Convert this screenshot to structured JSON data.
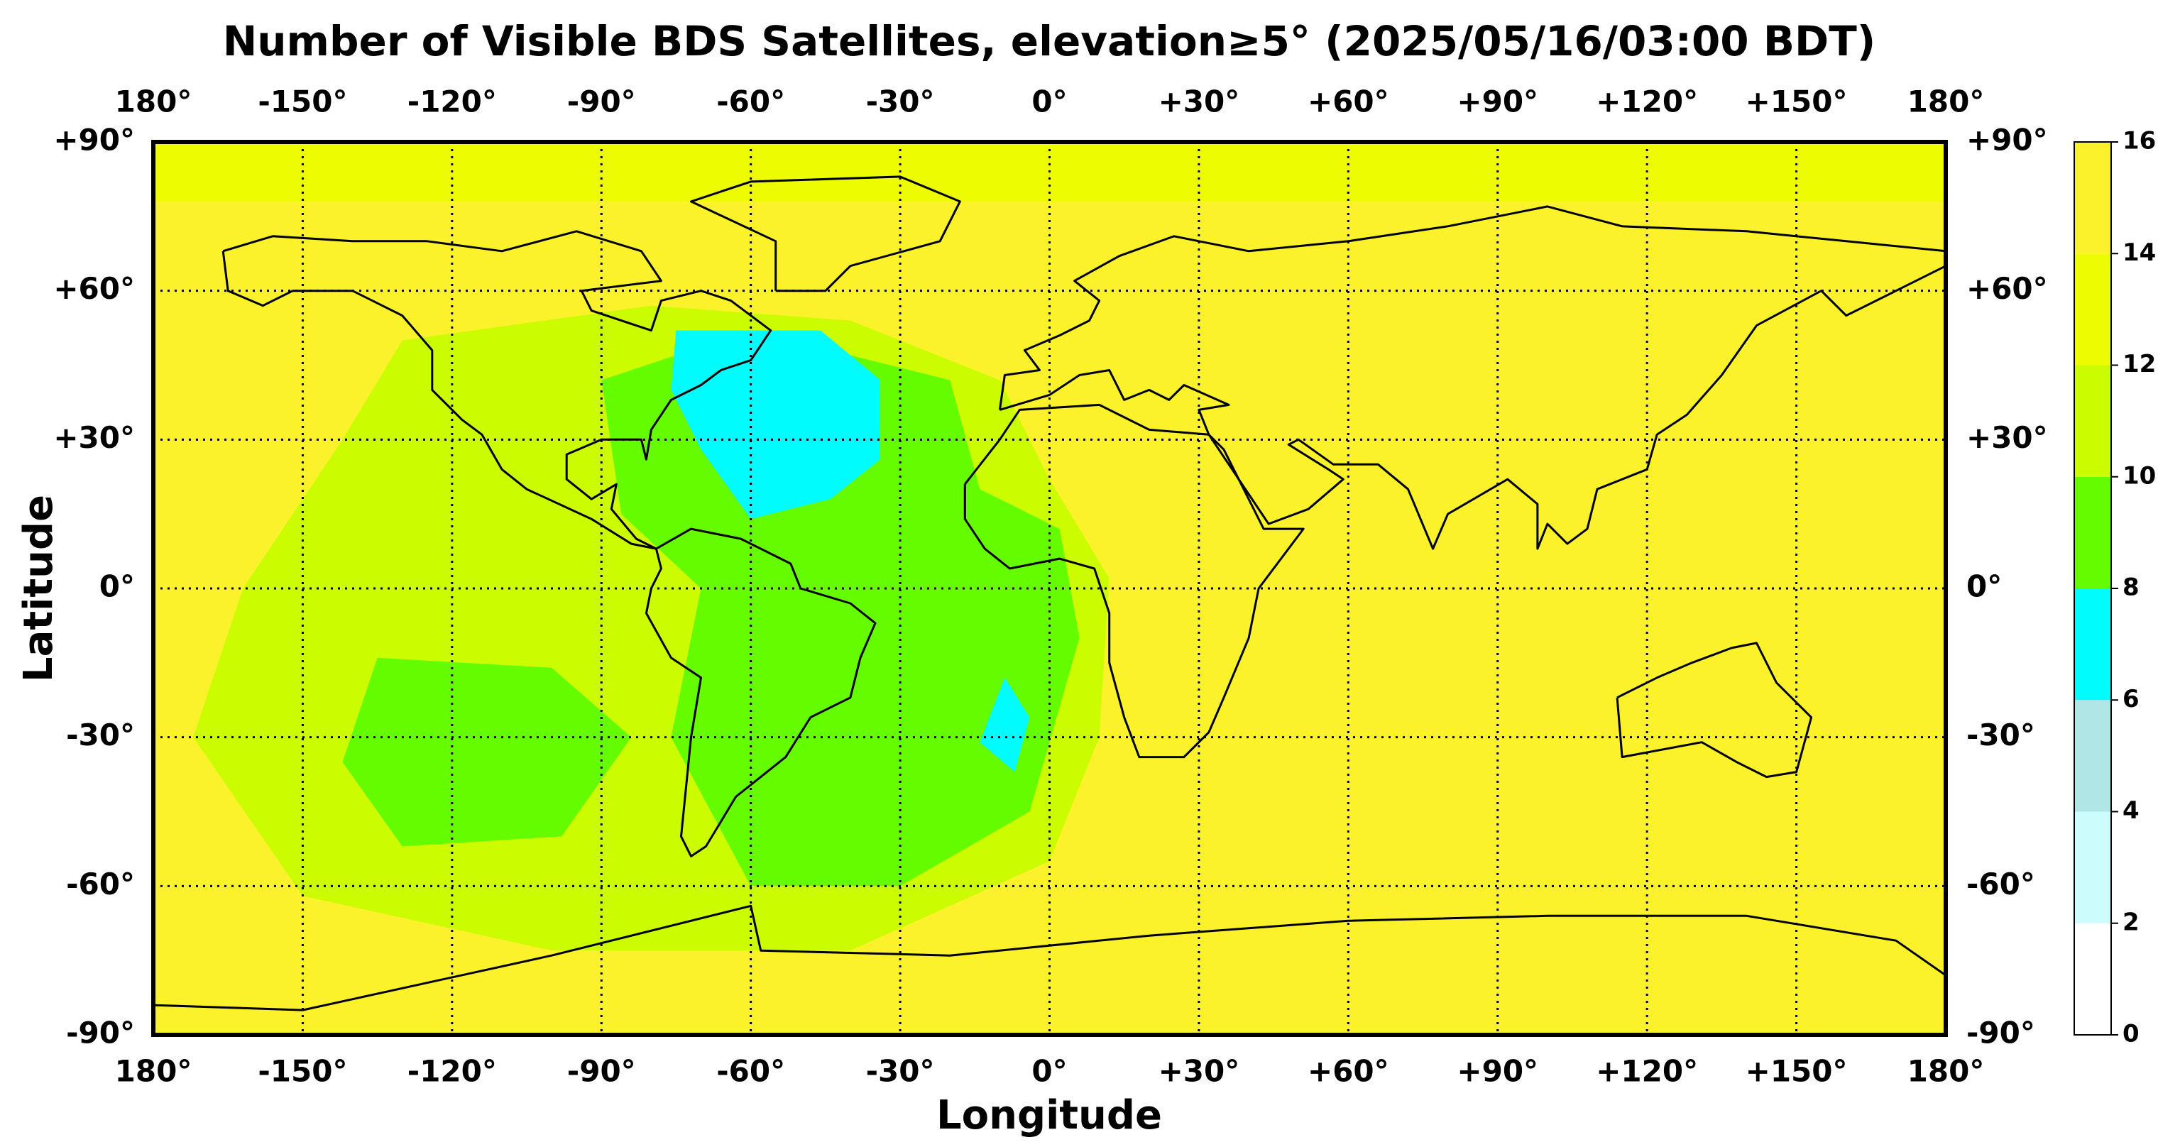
{
  "chart_data": {
    "type": "map",
    "title": "Number of Visible BDS Satellites, elevation≥5° (2025/05/16/03:00 BDT)",
    "x_label": "Longitude",
    "y_label": "Latitude",
    "xlim": [
      -180,
      180
    ],
    "ylim": [
      -90,
      90
    ],
    "xticks": [
      {
        "value": -180,
        "label": "180°"
      },
      {
        "value": -150,
        "label": "-150°"
      },
      {
        "value": -120,
        "label": "-120°"
      },
      {
        "value": -90,
        "label": "-90°"
      },
      {
        "value": -60,
        "label": "-60°"
      },
      {
        "value": -30,
        "label": "-30°"
      },
      {
        "value": 0,
        "label": "0°"
      },
      {
        "value": 30,
        "label": "+30°"
      },
      {
        "value": 60,
        "label": "+60°"
      },
      {
        "value": 90,
        "label": "+90°"
      },
      {
        "value": 120,
        "label": "+120°"
      },
      {
        "value": 150,
        "label": "+150°"
      },
      {
        "value": 180,
        "label": "180°"
      }
    ],
    "yticks": [
      {
        "value": 90,
        "label": "+90°"
      },
      {
        "value": 60,
        "label": "+60°"
      },
      {
        "value": 30,
        "label": "+30°"
      },
      {
        "value": 0,
        "label": "0°"
      },
      {
        "value": -30,
        "label": "-30°"
      },
      {
        "value": -60,
        "label": "-60°"
      },
      {
        "value": -90,
        "label": "-90°"
      }
    ],
    "grid": true,
    "background_value": 15,
    "colorbar": {
      "levels": [
        0,
        2,
        4,
        6,
        8,
        10,
        12,
        14,
        16
      ],
      "colors": [
        "#ffffff",
        "#ccfcfc",
        "#b0e6e6",
        "#00fcfc",
        "#66fc00",
        "#ccfc00",
        "#eefc00",
        "#fcf22c"
      ]
    },
    "regions": [
      {
        "value": 13,
        "polygon": [
          [
            -180,
            78
          ],
          [
            180,
            78
          ],
          [
            180,
            90
          ],
          [
            -180,
            90
          ]
        ]
      },
      {
        "value": 11,
        "polygon": [
          [
            -130,
            50
          ],
          [
            -80,
            57
          ],
          [
            -40,
            54
          ],
          [
            -10,
            42
          ],
          [
            0,
            22
          ],
          [
            12,
            2
          ],
          [
            10,
            -30
          ],
          [
            0,
            -55
          ],
          [
            -40,
            -73
          ],
          [
            -100,
            -73
          ],
          [
            -150,
            -62
          ],
          [
            -172,
            -30
          ],
          [
            -162,
            0
          ],
          [
            -142,
            30
          ]
        ]
      },
      {
        "value": 9,
        "polygon": [
          [
            -90,
            42
          ],
          [
            -60,
            52
          ],
          [
            -20,
            42
          ],
          [
            -14,
            20
          ],
          [
            2,
            12
          ],
          [
            6,
            -10
          ],
          [
            -4,
            -45
          ],
          [
            -30,
            -60
          ],
          [
            -60,
            -60
          ],
          [
            -76,
            -30
          ],
          [
            -70,
            0
          ],
          [
            -86,
            15
          ]
        ]
      },
      {
        "value": 9,
        "polygon": [
          [
            -135,
            -14
          ],
          [
            -100,
            -16
          ],
          [
            -84,
            -30
          ],
          [
            -98,
            -50
          ],
          [
            -130,
            -52
          ],
          [
            -142,
            -35
          ]
        ]
      },
      {
        "value": 7,
        "polygon": [
          [
            -75,
            52
          ],
          [
            -46,
            52
          ],
          [
            -34,
            42
          ],
          [
            -34,
            26
          ],
          [
            -44,
            18
          ],
          [
            -60,
            14
          ],
          [
            -70,
            28
          ],
          [
            -76,
            40
          ]
        ]
      },
      {
        "value": 7,
        "polygon": [
          [
            -9,
            -18
          ],
          [
            -4,
            -26
          ],
          [
            -7,
            -37
          ],
          [
            -14,
            -31
          ]
        ]
      }
    ]
  }
}
